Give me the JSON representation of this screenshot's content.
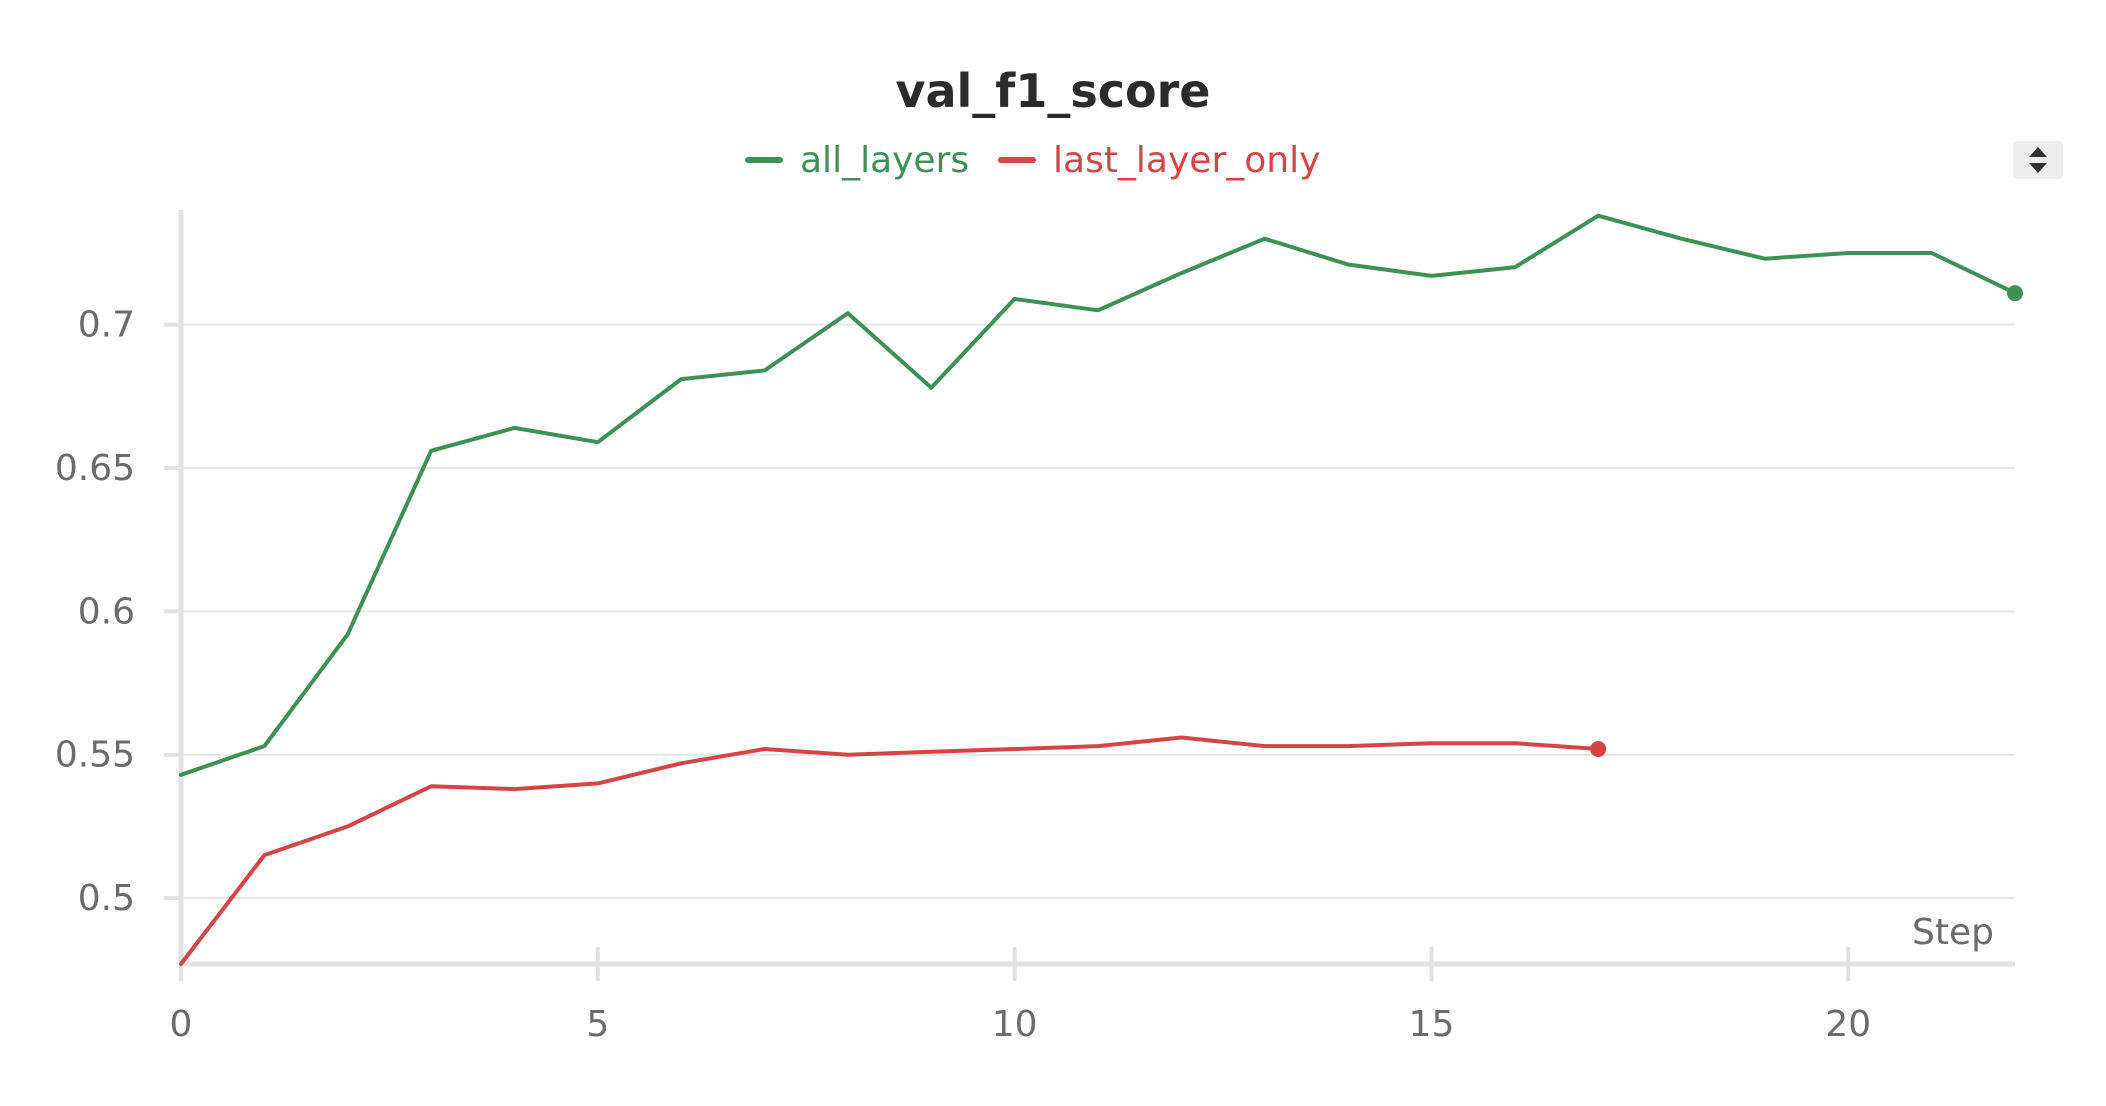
{
  "chart_data": {
    "type": "line",
    "title": "val_f1_score",
    "xlabel": "Step",
    "ylabel": "",
    "xlim": [
      0,
      22
    ],
    "ylim": [
      0.477,
      0.74
    ],
    "x_ticks": [
      0,
      5,
      10,
      15,
      20
    ],
    "y_ticks": [
      0.5,
      0.55,
      0.6,
      0.65,
      0.7
    ],
    "y_tick_labels": [
      "0.5",
      "0.55",
      "0.6",
      "0.65",
      "0.7"
    ],
    "grid": true,
    "legend_position": "top-center",
    "series": [
      {
        "name": "all_layers",
        "color": "#3d9155",
        "x": [
          0,
          1,
          2,
          3,
          4,
          5,
          6,
          7,
          8,
          9,
          10,
          11,
          12,
          13,
          14,
          15,
          16,
          17,
          18,
          19,
          20,
          21,
          22
        ],
        "values": [
          0.543,
          0.553,
          0.592,
          0.656,
          0.664,
          0.659,
          0.681,
          0.684,
          0.704,
          0.678,
          0.709,
          0.705,
          0.718,
          0.73,
          0.721,
          0.717,
          0.72,
          0.738,
          0.73,
          0.723,
          0.725,
          0.725,
          0.711
        ]
      },
      {
        "name": "last_layer_only",
        "color": "#d64545",
        "x": [
          0,
          1,
          2,
          3,
          4,
          5,
          6,
          7,
          8,
          9,
          10,
          11,
          12,
          13,
          14,
          15,
          16,
          17
        ],
        "values": [
          0.477,
          0.515,
          0.525,
          0.539,
          0.538,
          0.54,
          0.547,
          0.552,
          0.55,
          0.551,
          0.552,
          0.553,
          0.556,
          0.553,
          0.553,
          0.554,
          0.554,
          0.552
        ]
      }
    ]
  },
  "controls": {
    "scroll_toggle_icon": "sort-up-down-icon"
  }
}
